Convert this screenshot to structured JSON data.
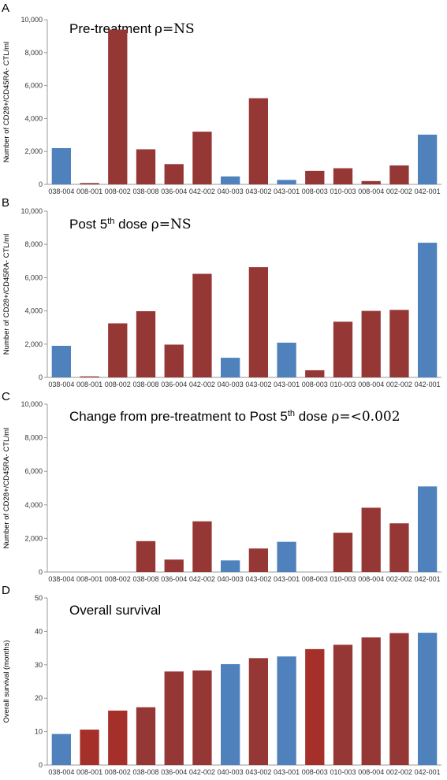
{
  "colors": {
    "blue": "#4f81bd",
    "red": "#953735",
    "red_bright": "#a5302a"
  },
  "chart_data": [
    {
      "type": "bar",
      "panel": "A",
      "title": "Pre-treatment",
      "title_tail": "=NS",
      "rho": "ρ",
      "sup": "",
      "title_rest": "",
      "ylabel": "Number of CD28+/CD45RA- CTL/ml",
      "ylim": [
        0,
        10000
      ],
      "yticks": [
        "0",
        "2,000",
        "4,000",
        "6,000",
        "8,000",
        "10,000"
      ],
      "categories": [
        "038-004",
        "008-001",
        "008-002",
        "038-008",
        "036-004",
        "042-002",
        "040-003",
        "043-002",
        "043-001",
        "008-003",
        "010-003",
        "008-004",
        "002-002",
        "042-001"
      ],
      "values": [
        2200,
        80,
        9400,
        2130,
        1230,
        3200,
        480,
        5230,
        270,
        820,
        980,
        200,
        1150,
        3020
      ],
      "bar_colors": [
        "blue",
        "red",
        "red",
        "red",
        "red",
        "red",
        "blue",
        "red",
        "blue",
        "red",
        "red",
        "red",
        "red",
        "blue"
      ]
    },
    {
      "type": "bar",
      "panel": "B",
      "title": "Post 5",
      "sup": "th",
      "title_rest": " dose ",
      "rho": "ρ",
      "title_tail": "=NS",
      "ylabel": "Number of CD28+/CD45RA- CTL/ml",
      "ylim": [
        0,
        10000
      ],
      "yticks": [
        "0",
        "2,000",
        "4,000",
        "6,000",
        "8,000",
        "10,000"
      ],
      "categories": [
        "038-004",
        "008-001",
        "008-002",
        "038-008",
        "036-004",
        "042-002",
        "040-003",
        "043-002",
        "043-001",
        "008-003",
        "010-003",
        "008-004",
        "002-002",
        "042-001"
      ],
      "values": [
        1900,
        60,
        3250,
        3980,
        1970,
        6230,
        1180,
        6630,
        2090,
        430,
        3350,
        4000,
        4060,
        8100
      ],
      "bar_colors": [
        "blue",
        "red",
        "red",
        "red",
        "red",
        "red",
        "blue",
        "red",
        "blue",
        "red",
        "red",
        "red",
        "red",
        "blue"
      ]
    },
    {
      "type": "bar",
      "panel": "C",
      "title": "Change from pre-treatment to Post 5",
      "sup": "th",
      "title_rest": " dose  ",
      "rho": "ρ",
      "title_tail": "=<0.002",
      "ylabel": "Number of CD28+/CD45RA- CTL/ml",
      "ylim": [
        0,
        10000
      ],
      "yticks": [
        "0",
        "2,000",
        "4,000",
        "6,000",
        "8,000",
        "10,000"
      ],
      "categories": [
        "038-004",
        "008-001",
        "008-002",
        "038-008",
        "036-004",
        "042-002",
        "040-003",
        "043-002",
        "043-001",
        "008-003",
        "010-003",
        "008-004",
        "002-002",
        "042-001"
      ],
      "values": [
        0,
        0,
        0,
        1840,
        740,
        3020,
        690,
        1400,
        1800,
        0,
        2340,
        3830,
        2900,
        5100
      ],
      "bar_colors": [
        "blue",
        "red",
        "red",
        "red",
        "red",
        "red",
        "blue",
        "red",
        "blue",
        "red",
        "red",
        "red",
        "red",
        "blue"
      ]
    },
    {
      "type": "bar",
      "panel": "D",
      "title": "Overall survival",
      "sup": "",
      "title_rest": "",
      "rho": "",
      "title_tail": "",
      "ylabel": "Overall survival (months)",
      "ylim": [
        0,
        50
      ],
      "yticks": [
        "0",
        "10",
        "20",
        "30",
        "40",
        "50"
      ],
      "categories": [
        "038-004",
        "008-001",
        "008-002",
        "038-008",
        "036-004",
        "042-002",
        "040-003",
        "043-002",
        "043-001",
        "008-003",
        "010-003",
        "008-004",
        "002-002",
        "042-001"
      ],
      "values": [
        9.3,
        10.6,
        16.3,
        17.3,
        28.0,
        28.3,
        30.2,
        32.0,
        32.5,
        34.7,
        36.0,
        38.2,
        39.5,
        39.6
      ],
      "bar_colors": [
        "blue",
        "red_bright",
        "red_bright",
        "red",
        "red",
        "red",
        "blue",
        "red",
        "blue",
        "red_bright",
        "red",
        "red",
        "red",
        "blue"
      ]
    }
  ]
}
